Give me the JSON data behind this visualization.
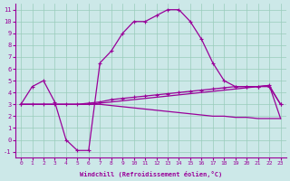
{
  "xlabel": "Windchill (Refroidissement éolien,°C)",
  "bg_color": "#cce8e8",
  "line_color": "#990099",
  "grid_color": "#99ccbb",
  "ylim": [
    -1.5,
    11.5
  ],
  "xlim": [
    -0.5,
    23.5
  ],
  "yticks": [
    -1,
    0,
    1,
    2,
    3,
    4,
    5,
    6,
    7,
    8,
    9,
    10,
    11
  ],
  "xticks": [
    0,
    1,
    2,
    3,
    4,
    5,
    6,
    7,
    8,
    9,
    10,
    11,
    12,
    13,
    14,
    15,
    16,
    17,
    18,
    19,
    20,
    21,
    22,
    23
  ],
  "curve_big_x": [
    0,
    1,
    2,
    3,
    4,
    5,
    6,
    7,
    8,
    9,
    10,
    11,
    12,
    13,
    14,
    15,
    16,
    17,
    18,
    19,
    20,
    21,
    22,
    23
  ],
  "curve_big_y": [
    3.0,
    4.5,
    5.0,
    3.2,
    0.0,
    -0.9,
    -0.9,
    6.5,
    7.5,
    9.0,
    10.0,
    10.0,
    10.5,
    11.0,
    11.0,
    10.0,
    8.5,
    6.5,
    5.0,
    4.5,
    4.5,
    4.5,
    4.5,
    3.0
  ],
  "curve_rise_x": [
    0,
    1,
    2,
    3,
    4,
    5,
    6,
    7,
    8,
    9,
    10,
    11,
    12,
    13,
    14,
    15,
    16,
    17,
    18,
    19,
    20,
    21,
    22,
    23
  ],
  "curve_rise_y": [
    3.0,
    3.0,
    3.0,
    3.0,
    3.0,
    3.0,
    3.1,
    3.2,
    3.4,
    3.5,
    3.6,
    3.7,
    3.8,
    3.9,
    4.0,
    4.1,
    4.2,
    4.3,
    4.4,
    4.5,
    4.5,
    4.5,
    4.6,
    3.0
  ],
  "curve_flat_x": [
    0,
    1,
    2,
    3,
    4,
    5,
    6,
    7,
    8,
    9,
    10,
    11,
    12,
    13,
    14,
    15,
    16,
    17,
    18,
    19,
    20,
    21,
    22,
    23
  ],
  "curve_flat_y": [
    3.0,
    3.0,
    3.0,
    3.0,
    3.0,
    3.0,
    3.0,
    3.0,
    2.9,
    2.8,
    2.7,
    2.6,
    2.5,
    2.4,
    2.3,
    2.2,
    2.1,
    2.0,
    2.0,
    1.9,
    1.9,
    1.8,
    1.8,
    1.8
  ],
  "curve_mid_x": [
    0,
    1,
    2,
    3,
    4,
    5,
    6,
    7,
    8,
    9,
    10,
    11,
    12,
    13,
    14,
    15,
    16,
    17,
    18,
    19,
    20,
    21,
    22,
    23
  ],
  "curve_mid_y": [
    3.0,
    3.0,
    3.0,
    3.0,
    3.0,
    3.0,
    3.0,
    3.1,
    3.2,
    3.3,
    3.4,
    3.5,
    3.6,
    3.7,
    3.8,
    3.9,
    4.0,
    4.1,
    4.2,
    4.3,
    4.4,
    4.5,
    4.6,
    1.8
  ]
}
